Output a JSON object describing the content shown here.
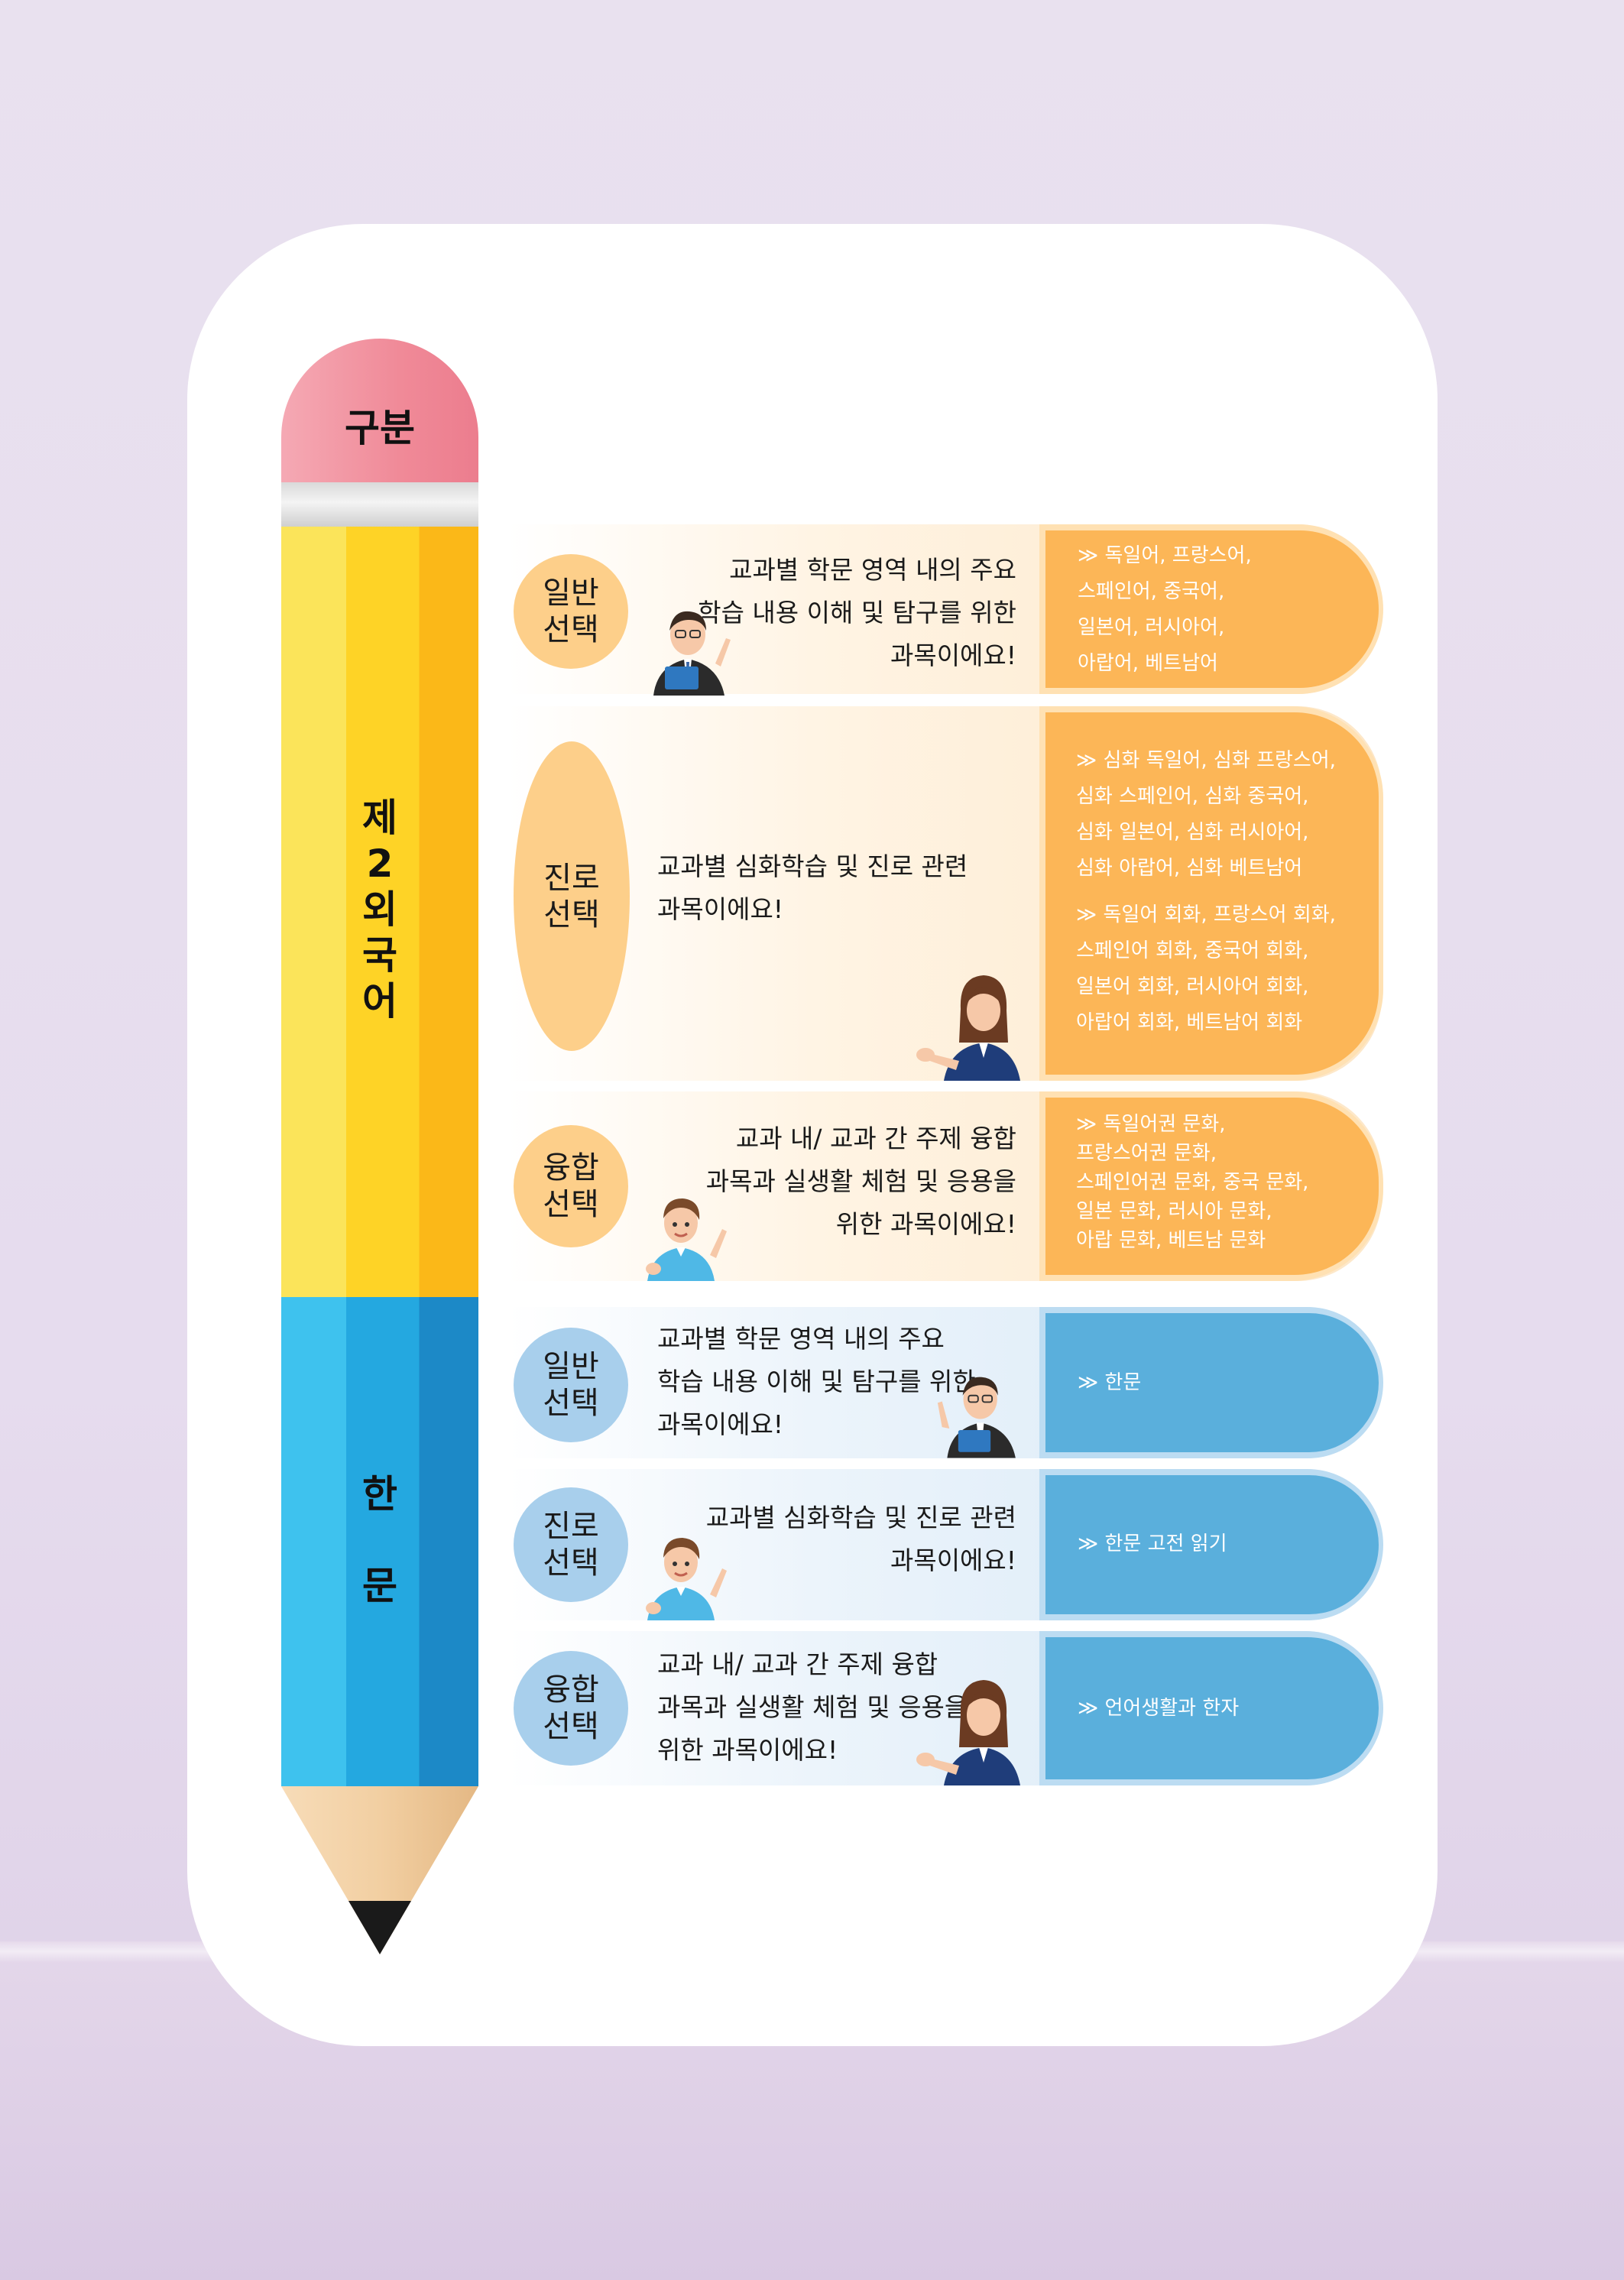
{
  "header": {
    "label": "구분"
  },
  "groups": [
    {
      "label": "제\n2\n외\n국\n어"
    },
    {
      "label": "한\n\n문"
    }
  ],
  "rows": [
    {
      "badge": "일반\n선택",
      "desc": "교과별 학문 영역 내의 주요\n학습 내용 이해 및 탐구를 위한\n과목이에요!",
      "subjects": "≫ 독일어, 프랑스어,\n    스페인어, 중국어,\n    일본어, 러시아어,\n    아랍어, 베트남어"
    },
    {
      "badge": "진로\n선택",
      "desc": "교과별 심화학습 및 진로 관련\n과목이에요!",
      "subjects": "≫ 심화 독일어, 심화 프랑스어,\n    심화 스페인어, 심화 중국어,\n    심화 일본어, 심화 러시아어,\n    심화 아랍어, 심화 베트남어",
      "subjects2": "≫ 독일어 회화, 프랑스어 회화,\n    스페인어 회화, 중국어 회화,\n    일본어 회화, 러시아어 회화,\n    아랍어 회화, 베트남어 회화"
    },
    {
      "badge": "융합\n선택",
      "desc": "교과 내/ 교과 간 주제 융합\n과목과 실생활 체험 및 응용을\n위한 과목이에요!",
      "subjects": "≫ 독일어권 문화,\n    프랑스어권 문화,\n    스페인어권 문화, 중국 문화,\n    일본 문화, 러시아 문화,\n    아랍 문화, 베트남 문화"
    },
    {
      "badge": "일반\n선택",
      "desc": "교과별 학문 영역 내의 주요\n학습 내용 이해 및 탐구를 위한\n과목이에요!",
      "subjects": "≫ 한문"
    },
    {
      "badge": "진로\n선택",
      "desc": "교과별 심화학습 및 진로 관련\n과목이에요!",
      "subjects": "≫ 한문 고전 읽기"
    },
    {
      "badge": "융합\n선택",
      "desc": "교과 내/ 교과 간 주제 융합\n과목과 실생활 체험 및 응용을\n위한 과목이에요!",
      "subjects": "≫ 언어생활과 한자"
    }
  ],
  "colors": {
    "yellow_panel": "#fcb657",
    "blue_panel": "#5aafdc",
    "yellow_badge": "#fdcf8a",
    "blue_badge": "#a8cfec",
    "eraser": "#f08a98"
  },
  "icons": [
    "teacher-man-icon",
    "teacher-woman-icon",
    "student-boy-icon"
  ]
}
